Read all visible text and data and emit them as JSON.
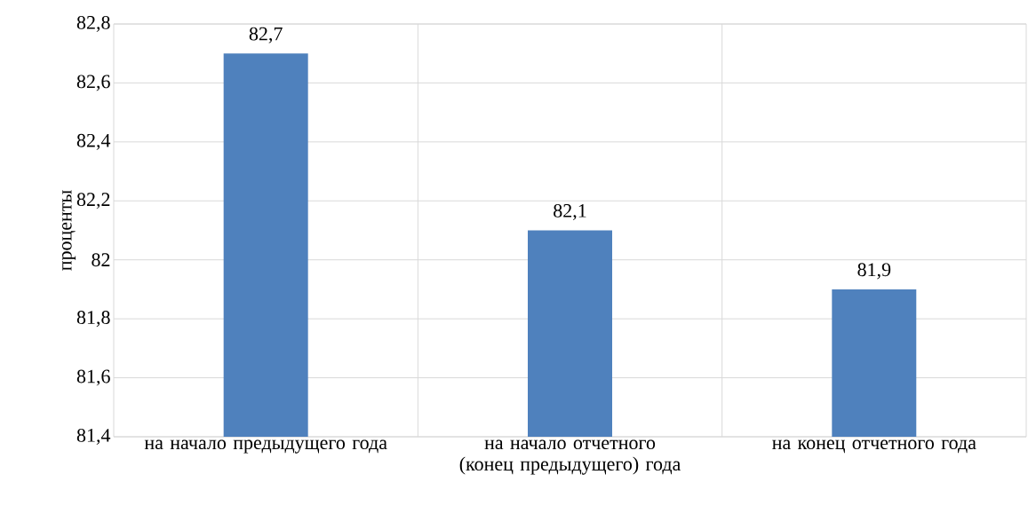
{
  "chart_data": {
    "type": "bar",
    "ylabel": "проценты",
    "categories": [
      "на начало предыдущего года",
      "на начало отчетного (конец предыдущего) года",
      "на конец отчетного года"
    ],
    "values": [
      82.7,
      82.1,
      81.9
    ],
    "color": "#4f81bd",
    "ylim": [
      81.4,
      82.8
    ],
    "yticks": [
      "81,4",
      "81,6",
      "81,8",
      "82",
      "82,2",
      "82,4",
      "82,6",
      "82,8"
    ],
    "value_labels": [
      "82,7",
      "82,1",
      "81,9"
    ],
    "grid": true
  }
}
